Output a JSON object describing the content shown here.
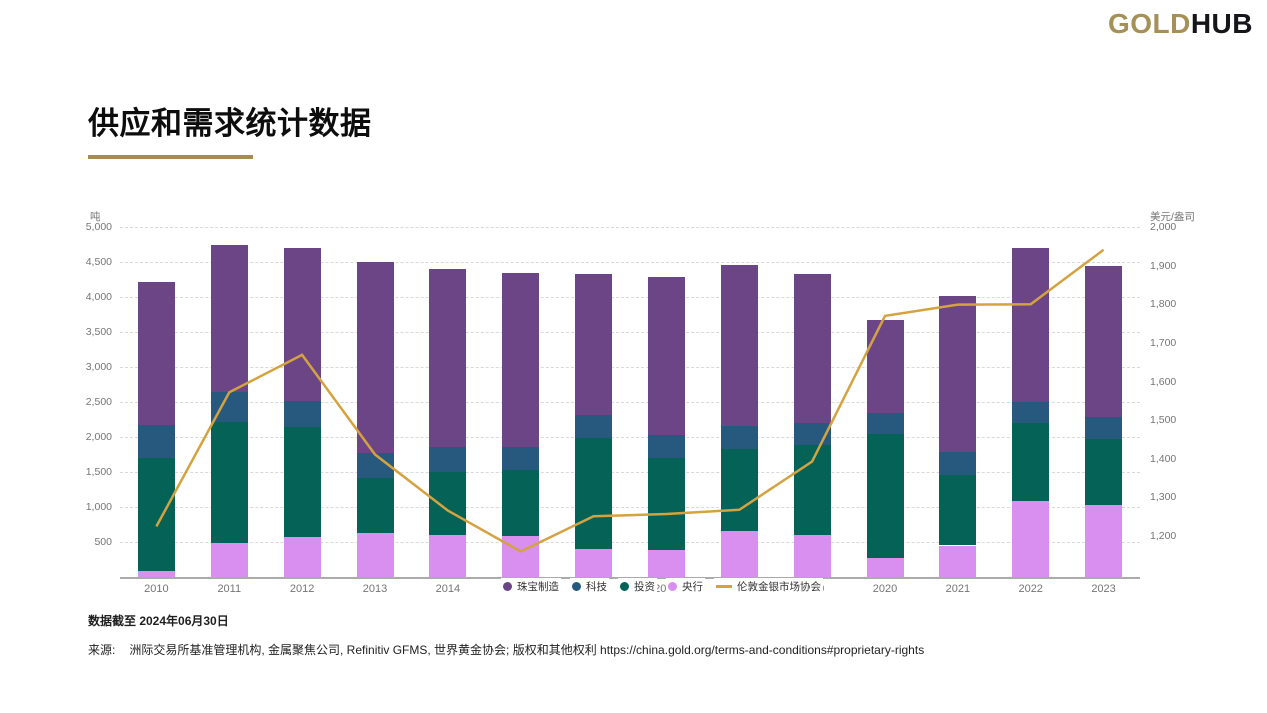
{
  "logo": {
    "gold": "GOLD",
    "rest": "HUB"
  },
  "page_title": "供应和需求统计数据",
  "footer": {
    "as_of": "数据截至 2024年06月30日",
    "source_label": "来源:",
    "source_text": "洲际交易所基准管理机构, 金属聚焦公司, Refinitiv GFMS, 世界黄金协会; 版权和其他权利 https://china.gold.org/terms-and-conditions#proprietary-rights"
  },
  "colors": {
    "accent_gold": "#a58c55",
    "logo_gold": "#a59058",
    "logo_dark": "#15151a",
    "jewellery": "#6c4587",
    "technology": "#27587e",
    "investment": "#046257",
    "central_banks": "#d98ff0",
    "lbma_line": "#d4a340",
    "gridline": "#d9d9d9",
    "axis_text": "#757575"
  },
  "chart_data": {
    "type": "bar",
    "stacked": true,
    "title": "供应和需求统计数据",
    "legend_position": "bottom-center-overlapping-x-axis",
    "grid": true,
    "categories": [
      "2010",
      "2011",
      "2012",
      "2013",
      "2014",
      "2015",
      "2016",
      "2017",
      "2018",
      "2019",
      "2020",
      "2021",
      "2022",
      "2023"
    ],
    "series": [
      {
        "key": "central-banks",
        "name": "央行",
        "color": "#d98ff0",
        "values": [
          79,
          481,
          569,
          629,
          601,
          580,
          395,
          379,
          656,
          605,
          272,
          450,
          1082,
          1030
        ]
      },
      {
        "key": "investment",
        "name": "投资",
        "color": "#046257",
        "values": [
          1620,
          1735,
          1568,
          784,
          904,
          951,
          1595,
          1315,
          1173,
          1274,
          1773,
          1007,
          1113,
          945
        ]
      },
      {
        "key": "technology",
        "name": "科技",
        "color": "#27587e",
        "values": [
          466,
          429,
          382,
          356,
          348,
          332,
          323,
          333,
          335,
          326,
          302,
          330,
          309,
          305
        ]
      },
      {
        "key": "jewellery",
        "name": "珠宝制造",
        "color": "#6c4587",
        "values": [
          2051,
          2091,
          2175,
          2736,
          2544,
          2479,
          2019,
          2257,
          2290,
          2122,
          1327,
          2231,
          2195,
          2168
        ]
      }
    ],
    "line_series": {
      "key": "lbma",
      "name": "伦敦金银市场协会",
      "color": "#d4a340",
      "axis": "right",
      "values": [
        1225,
        1572,
        1669,
        1411,
        1266,
        1160,
        1251,
        1257,
        1268,
        1393,
        1770,
        1799,
        1800,
        1941
      ]
    },
    "legend_order": [
      "jewellery",
      "technology",
      "investment",
      "central-banks",
      "lbma"
    ],
    "left_axis": {
      "title": "吨",
      "min": 0,
      "max": 5000,
      "tick_values": [
        500,
        1000,
        1500,
        2000,
        2500,
        3000,
        3500,
        4000,
        4500,
        5000
      ],
      "tick_labels": [
        "500",
        "1,000",
        "1,500",
        "2,000",
        "2,500",
        "3,000",
        "3,500",
        "4,000",
        "4,500",
        "5,000"
      ]
    },
    "right_axis": {
      "title": "美元/盎司",
      "min": 1094,
      "max": 2000,
      "tick_values": [
        1200,
        1300,
        1400,
        1500,
        1600,
        1700,
        1800,
        1900,
        2000
      ],
      "tick_labels": [
        "1,200",
        "1,300",
        "1,400",
        "1,500",
        "1,600",
        "1,700",
        "1,800",
        "1,900",
        "2,000"
      ]
    }
  }
}
